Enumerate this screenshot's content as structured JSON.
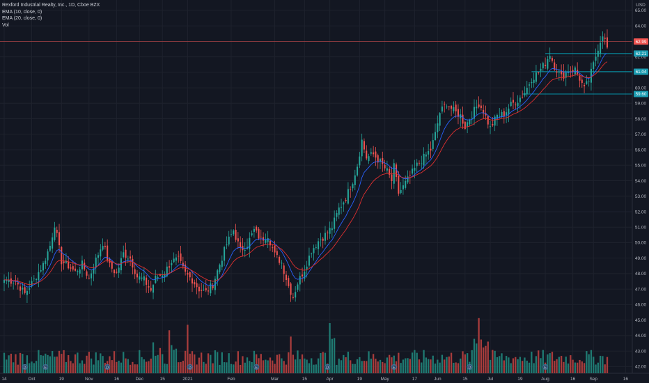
{
  "header": {
    "symbol_line": "Rexford Industrial Realty, Inc., 1D, Cboe BZX",
    "indicators": [
      "EMA (10, close, 0)",
      "EMA (20, close, 0)",
      "Vol"
    ],
    "currency": "USD"
  },
  "colors": {
    "background": "#131722",
    "grid": "#1e222d",
    "up": "#26a69a",
    "down": "#ef5350",
    "up_volume": "#1f7a72",
    "down_volume": "#a83c3c",
    "ema10": "#2962ff",
    "ema20": "#e03030",
    "axis_text": "#b2b5be",
    "level_line": "#00bcd4",
    "price_line": "#ef5350",
    "marker": "#2a4a6a"
  },
  "chart_data": {
    "type": "candlestick",
    "title": "Rexford Industrial Realty, Inc., 1D, Cboe BZX",
    "ylabel": "USD",
    "ylim": [
      41.7,
      65.4
    ],
    "y_ticks": [
      42,
      43,
      44,
      45,
      46,
      47,
      48,
      49,
      50,
      51,
      52,
      53,
      54,
      55,
      56,
      57,
      58,
      59,
      60,
      61,
      62,
      63,
      64,
      65
    ],
    "x_ticks": [
      "14",
      "Oct",
      "19",
      "Nov",
      "16",
      "Dec",
      "15",
      "2021",
      "Feb",
      "Mar",
      "15",
      "Apr",
      "19",
      "May",
      "17",
      "Jun",
      "15",
      "Jul",
      "19",
      "Aug",
      "16",
      "Sep",
      "16"
    ],
    "x_tick_index": [
      0,
      12,
      25,
      37,
      49,
      59,
      69,
      80,
      99,
      118,
      131,
      142,
      155,
      166,
      179,
      189,
      201,
      212,
      225,
      236,
      248,
      257,
      271
    ],
    "grid": true,
    "price_scale": "right",
    "anchor_closes": [
      [
        0,
        47.6
      ],
      [
        5,
        47.5
      ],
      [
        9,
        46.7
      ],
      [
        13,
        47.6
      ],
      [
        17,
        48.6
      ],
      [
        20,
        49.8
      ],
      [
        22,
        51.2
      ],
      [
        25,
        48.8
      ],
      [
        28,
        48.5
      ],
      [
        31,
        48.1
      ],
      [
        34,
        48.6
      ],
      [
        37,
        47.7
      ],
      [
        40,
        48.9
      ],
      [
        43,
        50.0
      ],
      [
        46,
        48.5
      ],
      [
        49,
        48.0
      ],
      [
        52,
        49.3
      ],
      [
        55,
        49.0
      ],
      [
        58,
        47.8
      ],
      [
        61,
        47.6
      ],
      [
        64,
        46.9
      ],
      [
        66,
        47.7
      ],
      [
        70,
        48.1
      ],
      [
        73,
        48.8
      ],
      [
        76,
        48.9
      ],
      [
        79,
        48.0
      ],
      [
        82,
        47.6
      ],
      [
        85,
        47.0
      ],
      [
        88,
        46.8
      ],
      [
        91,
        47.3
      ],
      [
        94,
        48.6
      ],
      [
        97,
        49.9
      ],
      [
        100,
        50.8
      ],
      [
        103,
        49.5
      ],
      [
        106,
        49.9
      ],
      [
        109,
        50.8
      ],
      [
        112,
        50.2
      ],
      [
        115,
        50.5
      ],
      [
        118,
        49.2
      ],
      [
        121,
        48.7
      ],
      [
        124,
        47.2
      ],
      [
        126,
        46.5
      ],
      [
        128,
        47.4
      ],
      [
        131,
        48.3
      ],
      [
        134,
        49.5
      ],
      [
        137,
        50.1
      ],
      [
        140,
        50.5
      ],
      [
        143,
        51.0
      ],
      [
        146,
        52.2
      ],
      [
        149,
        52.9
      ],
      [
        152,
        54.0
      ],
      [
        154,
        55.0
      ],
      [
        156,
        56.6
      ],
      [
        158,
        55.5
      ],
      [
        161,
        55.7
      ],
      [
        164,
        55.2
      ],
      [
        167,
        54.6
      ],
      [
        169,
        54.0
      ],
      [
        170,
        54.9
      ],
      [
        172,
        53.2
      ],
      [
        174,
        53.6
      ],
      [
        177,
        54.3
      ],
      [
        180,
        55.0
      ],
      [
        183,
        55.5
      ],
      [
        186,
        56.0
      ],
      [
        188,
        57.0
      ],
      [
        190,
        58.4
      ],
      [
        193,
        59.0
      ],
      [
        196,
        58.5
      ],
      [
        199,
        58.2
      ],
      [
        201,
        57.5
      ],
      [
        204,
        58.3
      ],
      [
        207,
        59.0
      ],
      [
        209,
        58.5
      ],
      [
        212,
        57.4
      ],
      [
        215,
        58.2
      ],
      [
        218,
        58.3
      ],
      [
        221,
        58.9
      ],
      [
        224,
        59.2
      ],
      [
        227,
        59.7
      ],
      [
        230,
        60.6
      ],
      [
        233,
        61.0
      ],
      [
        236,
        61.6
      ],
      [
        238,
        62.2
      ],
      [
        240,
        61.4
      ],
      [
        243,
        60.7
      ],
      [
        246,
        61.1
      ],
      [
        249,
        61.2
      ],
      [
        251,
        60.6
      ],
      [
        253,
        59.9
      ],
      [
        255,
        60.5
      ],
      [
        257,
        61.5
      ],
      [
        259,
        62.6
      ],
      [
        261,
        63.5
      ],
      [
        263,
        62.6
      ]
    ],
    "ema_periods": [
      10,
      20
    ],
    "current_price": 62.99,
    "horizontal_levels": [
      62.21,
      61.04,
      59.6
    ],
    "markers": [
      {
        "label": "D",
        "index": 9
      },
      {
        "label": "E",
        "index": 18
      },
      {
        "label": "D",
        "index": 45
      },
      {
        "label": "D",
        "index": 81
      },
      {
        "label": "E",
        "index": 110
      },
      {
        "label": "D",
        "index": 141
      },
      {
        "label": "E",
        "index": 170
      },
      {
        "label": "D",
        "index": 203
      },
      {
        "label": "E",
        "index": 236
      }
    ]
  }
}
